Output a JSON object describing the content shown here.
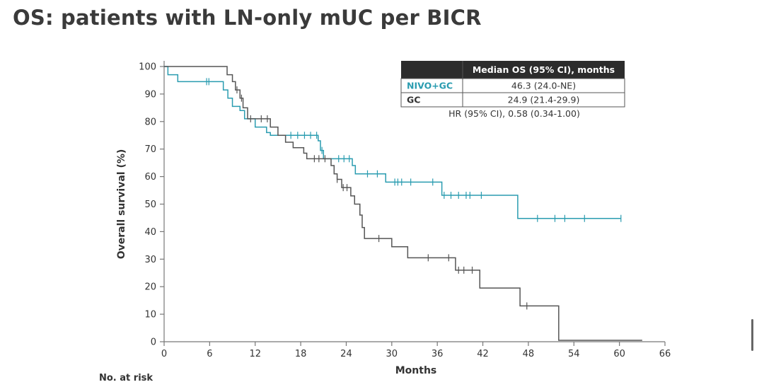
{
  "page": {
    "title": "OS: patients with LN-only mUC per BICR",
    "risk_label": "No. at risk"
  },
  "chart_data": {
    "type": "line",
    "subtype": "kaplan-meier",
    "xlabel": "Months",
    "ylabel": "Overall survival (%)",
    "xlim": [
      0,
      66
    ],
    "ylim": [
      0,
      100
    ],
    "xticks": [
      0,
      6,
      12,
      18,
      24,
      30,
      36,
      42,
      48,
      54,
      60,
      66
    ],
    "yticks": [
      0,
      10,
      20,
      30,
      40,
      50,
      60,
      70,
      80,
      90,
      100
    ],
    "grid": false,
    "series": [
      {
        "name": "NIVO+GC",
        "color": "#2a9cb0",
        "steps": [
          [
            0,
            100
          ],
          [
            0.5,
            97
          ],
          [
            1.8,
            94.5
          ],
          [
            7,
            94.5
          ],
          [
            7.8,
            91.5
          ],
          [
            8.4,
            88.5
          ],
          [
            9,
            85.5
          ],
          [
            10,
            84
          ],
          [
            10.6,
            81
          ],
          [
            12,
            78
          ],
          [
            13.5,
            76
          ],
          [
            14,
            75
          ],
          [
            20,
            75
          ],
          [
            20.3,
            73
          ],
          [
            20.6,
            69.5
          ],
          [
            21,
            66.5
          ],
          [
            24.6,
            66.5
          ],
          [
            24.8,
            64
          ],
          [
            25.2,
            61
          ],
          [
            28.8,
            61
          ],
          [
            29.2,
            58
          ],
          [
            36.3,
            58
          ],
          [
            36.6,
            53.2
          ],
          [
            46.4,
            53.2
          ],
          [
            46.6,
            44.8
          ],
          [
            60.2,
            44.8
          ]
        ],
        "censor": [
          5.6,
          5.9,
          16.7,
          17.6,
          18.5,
          19.3,
          20.1,
          20.8,
          23,
          23.7,
          24.4,
          26.8,
          28.1,
          30.4,
          30.8,
          31.3,
          32.5,
          35.4,
          36.9,
          37.8,
          38.8,
          39.8,
          40.3,
          41.8,
          49.2,
          51.5,
          52.8,
          55.4,
          60.2
        ]
      },
      {
        "name": "GC",
        "color": "#555555",
        "steps": [
          [
            0,
            100
          ],
          [
            8,
            100
          ],
          [
            8.3,
            97
          ],
          [
            9,
            94.5
          ],
          [
            9.4,
            91.5
          ],
          [
            10,
            88.5
          ],
          [
            10.4,
            85
          ],
          [
            11,
            81
          ],
          [
            13.5,
            81
          ],
          [
            14,
            78
          ],
          [
            15,
            75
          ],
          [
            16,
            72.5
          ],
          [
            17,
            70.5
          ],
          [
            18.4,
            68.5
          ],
          [
            18.8,
            66.5
          ],
          [
            21.5,
            66.5
          ],
          [
            22,
            64
          ],
          [
            22.4,
            61
          ],
          [
            22.8,
            59
          ],
          [
            23.4,
            56
          ],
          [
            24.2,
            56
          ],
          [
            24.6,
            53
          ],
          [
            25.1,
            50
          ],
          [
            25.8,
            46
          ],
          [
            26.1,
            41.5
          ],
          [
            26.4,
            37.5
          ],
          [
            28.3,
            37.5
          ],
          [
            29.7,
            37.5
          ],
          [
            30,
            34.5
          ],
          [
            31.8,
            34.5
          ],
          [
            32.1,
            30.5
          ],
          [
            38.2,
            30.5
          ],
          [
            38.4,
            26
          ],
          [
            41.4,
            26
          ],
          [
            41.6,
            19.5
          ],
          [
            46.6,
            19.5
          ],
          [
            46.9,
            13
          ],
          [
            51.8,
            13
          ],
          [
            52,
            0.5
          ],
          [
            63,
            0.5
          ]
        ],
        "censor": [
          9.6,
          10.2,
          11.4,
          12.8,
          13.6,
          19.8,
          20.4,
          21.2,
          22.8,
          23.6,
          24.1,
          28.3,
          34.8,
          37.5,
          38.8,
          39.5,
          40.6,
          47.8
        ]
      }
    ],
    "table": {
      "header": "Median OS (95% CI), months",
      "rows": [
        {
          "label": "NIVO+GC",
          "value": "46.3 (24.0-NE)",
          "label_color": "#2a9cb0"
        },
        {
          "label": "GC",
          "value": "24.9 (21.4-29.9)",
          "label_color": "#333333"
        }
      ],
      "hr": "HR (95% CI), 0.58 (0.34-1.00)"
    }
  }
}
